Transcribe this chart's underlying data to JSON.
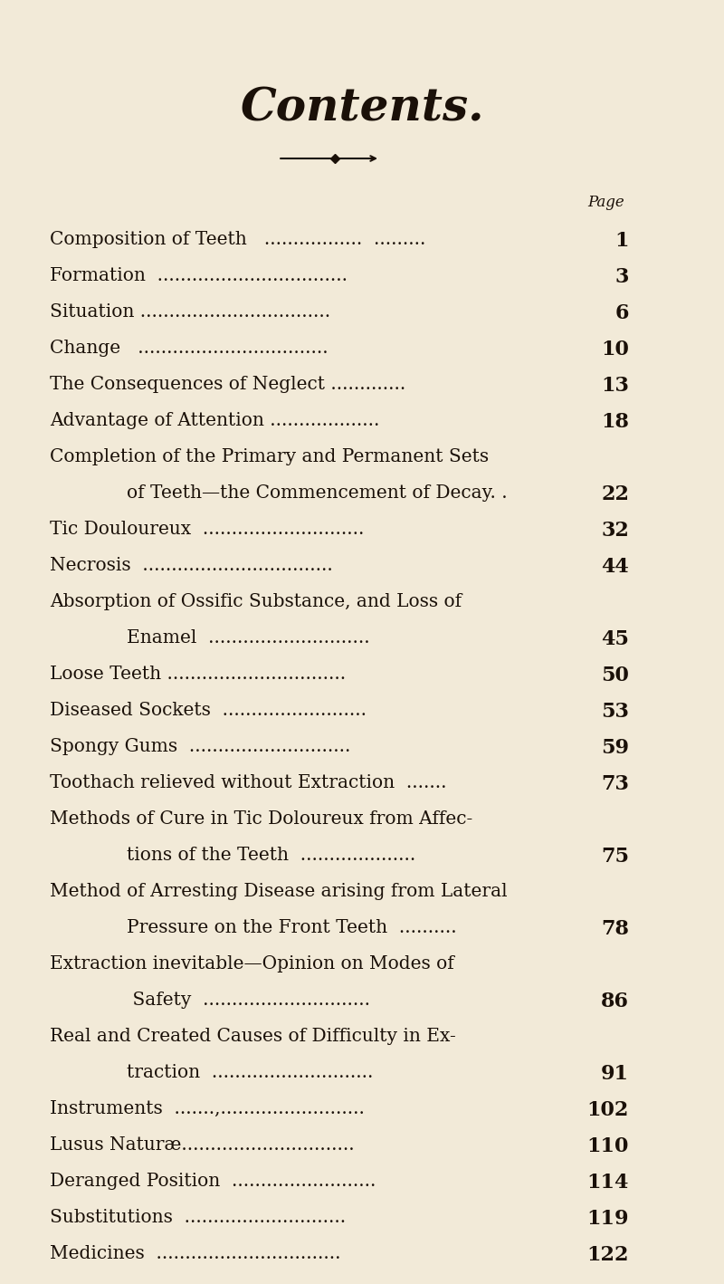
{
  "background_color": "#f2ead8",
  "title": "Contents.",
  "page_label": "Page",
  "text_color": "#1a1008",
  "title_fontsize": 36,
  "entry_fontsize": 14.5,
  "page_fontsize": 16,
  "page_label_fontsize": 12,
  "entries": [
    {
      "line1": "Composition of Teeth   .................  .........",
      "line2": null,
      "indent2": false,
      "page": "1"
    },
    {
      "line1": "Formation  .................................",
      "line2": null,
      "indent2": false,
      "page": "3"
    },
    {
      "line1": "Situation .................................",
      "line2": null,
      "indent2": false,
      "page": "6"
    },
    {
      "line1": "Change   .................................",
      "line2": null,
      "indent2": false,
      "page": "10"
    },
    {
      "line1": "The Consequences of Neglect .............",
      "line2": null,
      "indent2": false,
      "page": "13"
    },
    {
      "line1": "Advantage of Attention ...................",
      "line2": null,
      "indent2": false,
      "page": "18"
    },
    {
      "line1": "Completion of the Primary and Permanent Sets",
      "line2": "of Teeth—the Commencement of Decay. .",
      "indent2": true,
      "page": "22"
    },
    {
      "line1": "Tic Douloureux  ............................",
      "line2": null,
      "indent2": false,
      "page": "32"
    },
    {
      "line1": "Necrosis  .................................",
      "line2": null,
      "indent2": false,
      "page": "44"
    },
    {
      "line1": "Absorption of Ossific Substance, and Loss of",
      "line2": "Enamel  ............................",
      "indent2": true,
      "page": "45"
    },
    {
      "line1": "Loose Teeth ...............................",
      "line2": null,
      "indent2": false,
      "page": "50"
    },
    {
      "line1": "Diseased Sockets  .........................",
      "line2": null,
      "indent2": false,
      "page": "53"
    },
    {
      "line1": "Spongy Gums  ............................",
      "line2": null,
      "indent2": false,
      "page": "59"
    },
    {
      "line1": "Toothach relieved without Extraction  .......",
      "line2": null,
      "indent2": false,
      "page": "73"
    },
    {
      "line1": "Methods of Cure in Tic Doloureux from Affec-",
      "line2": "tions of the Teeth  ....................",
      "indent2": true,
      "page": "75"
    },
    {
      "line1": "Method of Arresting Disease arising from Lateral",
      "line2": "Pressure on the Front Teeth  ..........",
      "indent2": true,
      "page": "78"
    },
    {
      "line1": "Extraction inevitable—Opinion on Modes of",
      "line2": " Safety  .............................",
      "indent2": true,
      "page": "86"
    },
    {
      "line1": "Real and Created Causes of Difficulty in Ex-",
      "line2": "traction  ............................",
      "indent2": true,
      "page": "91"
    },
    {
      "line1": "Instruments  .......,.........................",
      "line2": null,
      "indent2": false,
      "page": "102"
    },
    {
      "line1": "Lusus Naturæ..............................",
      "line2": null,
      "indent2": false,
      "page": "110"
    },
    {
      "line1": "Deranged Position  .........................",
      "line2": null,
      "indent2": false,
      "page": "114"
    },
    {
      "line1": "Substitutions  ............................",
      "line2": null,
      "indent2": false,
      "page": "119"
    },
    {
      "line1": "Medicines  ................................",
      "line2": null,
      "indent2": false,
      "page": "122"
    }
  ]
}
